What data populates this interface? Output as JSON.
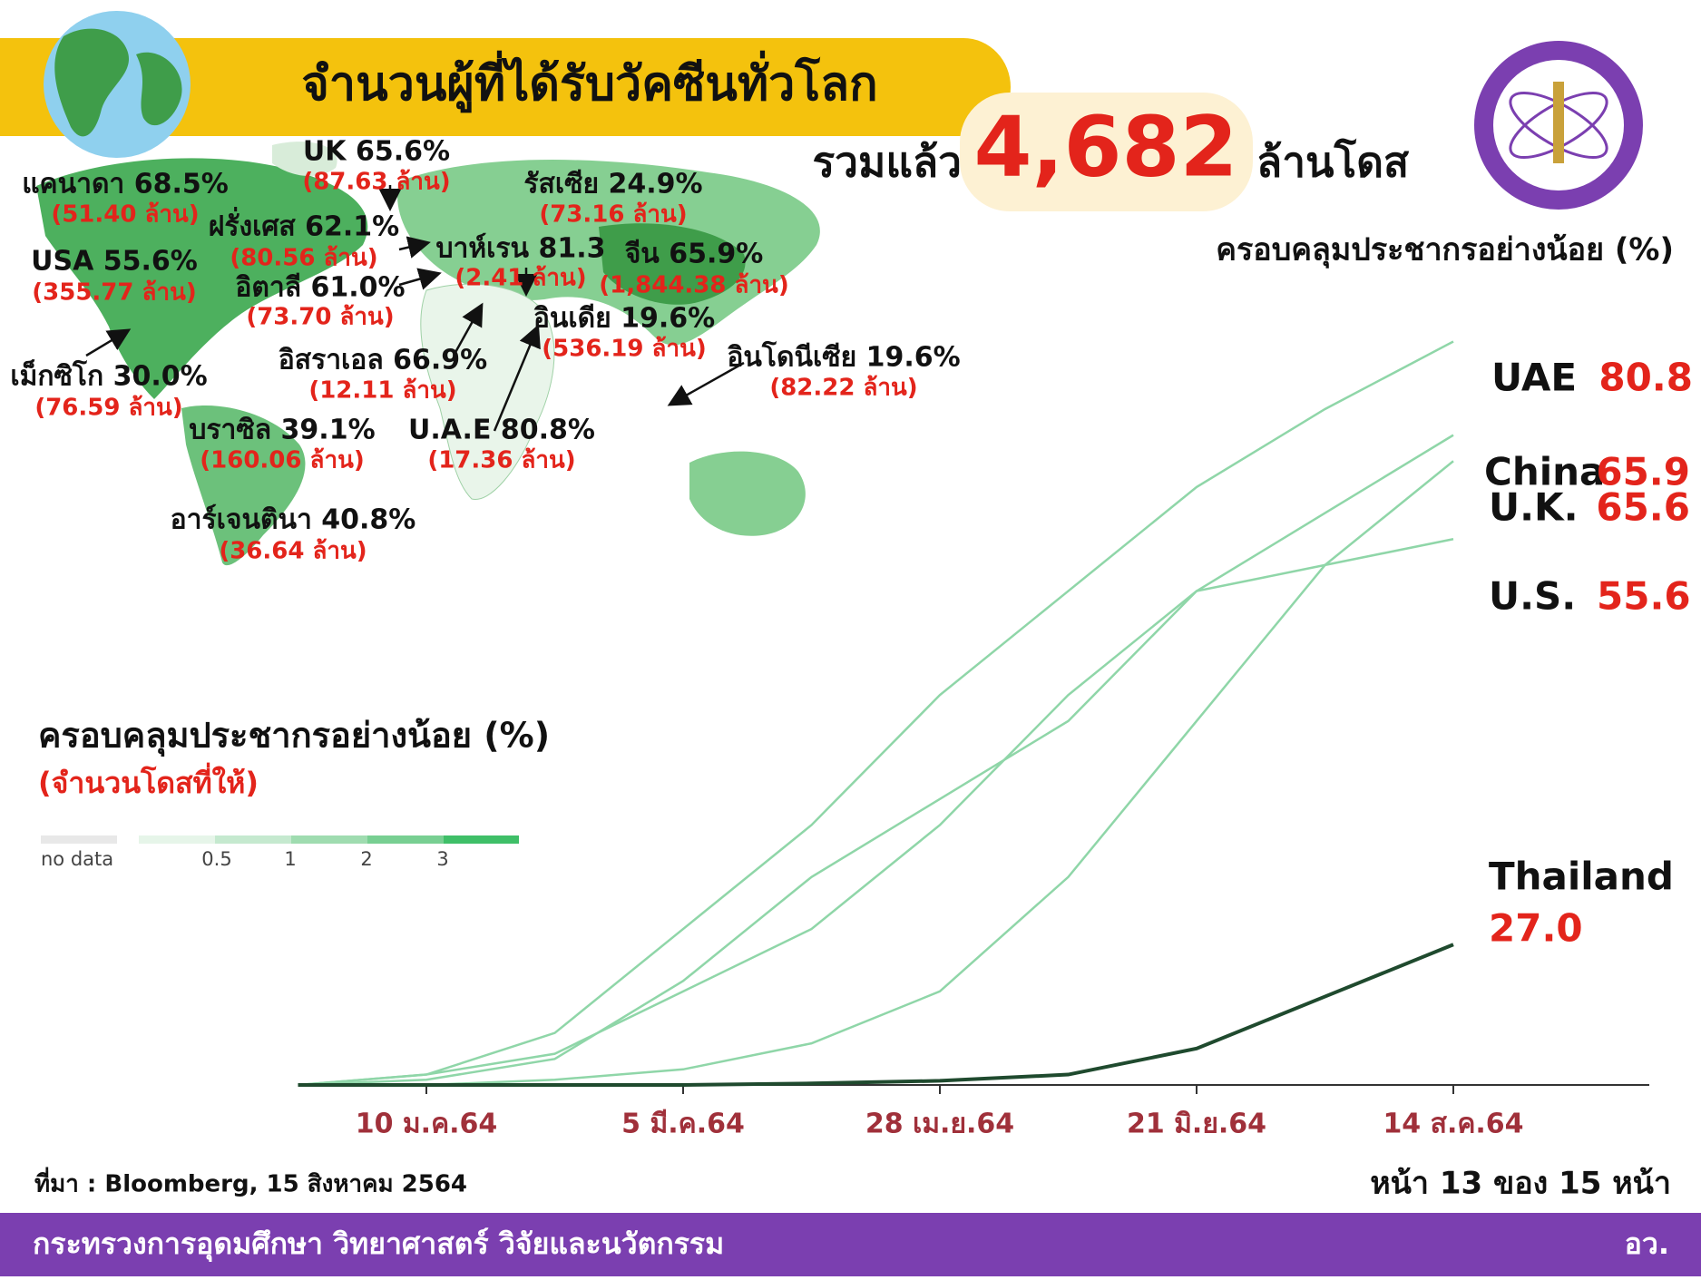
{
  "header": {
    "title": "จำนวนผู้ที่ได้รับวัคซีนทั่วโลก",
    "total_prefix": "รวมแล้ว",
    "total": "4,682",
    "total_unit": "ล้านโดส"
  },
  "coverage_heading": "ครอบคลุมประชากรอย่างน้อย (%)",
  "map": {
    "labels": [
      {
        "name": "UK 65.6%",
        "doses": "(87.63 ล้าน)"
      },
      {
        "name": "แคนาดา 68.5%",
        "doses": "(51.40 ล้าน)"
      },
      {
        "name": "รัสเซีย 24.9%",
        "doses": "(73.16 ล้าน)"
      },
      {
        "name": "ฝรั่งเศส 62.1%",
        "doses": "(80.56 ล้าน)"
      },
      {
        "name": "USA 55.6%",
        "doses": "(355.77 ล้าน)"
      },
      {
        "name": "บาห์เรน 81.3",
        "doses": "(2.41 ล้าน)"
      },
      {
        "name": "จีน 65.9%",
        "doses": "(1,844.38 ล้าน)"
      },
      {
        "name": "อิตาลี 61.0%",
        "doses": "(73.70 ล้าน)"
      },
      {
        "name": "อินเดีย 19.6%",
        "doses": "(536.19 ล้าน)"
      },
      {
        "name": "อิสราเอล 66.9%",
        "doses": "(12.11 ล้าน)"
      },
      {
        "name": "อินโดนีเซีย 19.6%",
        "doses": "(82.22 ล้าน)"
      },
      {
        "name": "เม็กซิโก 30.0%",
        "doses": "(76.59 ล้าน)"
      },
      {
        "name": "บราซิล 39.1%",
        "doses": "(160.06 ล้าน)"
      },
      {
        "name": "U.A.E 80.8%",
        "doses": "(17.36 ล้าน)"
      },
      {
        "name": "อาร์เจนตินา 40.8%",
        "doses": "(36.64 ล้าน)"
      }
    ],
    "legend": {
      "title": "ครอบคลุมประชากรอย่างน้อย (%)",
      "subtitle": "(จำนวนโดสที่ให้)",
      "no_data": "no data",
      "ticks": [
        "0.5",
        "1",
        "2",
        "3"
      ]
    }
  },
  "chart_data": {
    "type": "line",
    "categories": [
      null,
      "10 ม.ค.64",
      null,
      "5 มี.ค.64",
      null,
      "28 เม.ย.64",
      null,
      "21 มิ.ย.64",
      null,
      "14 ส.ค.64"
    ],
    "ylim": [
      0,
      145
    ],
    "series": [
      {
        "name": "UAE",
        "label": "80.8",
        "color": "#8fd6a8",
        "values": [
          0,
          2,
          10,
          30,
          50,
          75,
          95,
          115,
          130,
          143
        ]
      },
      {
        "name": "China",
        "label": "65.9",
        "color": "#8fd6a8",
        "values": [
          0,
          0,
          1,
          3,
          8,
          18,
          40,
          70,
          100,
          120
        ]
      },
      {
        "name": "U.K.",
        "label": "65.6",
        "color": "#8fd6a8",
        "values": [
          0,
          1,
          5,
          20,
          40,
          55,
          70,
          95,
          110,
          125
        ]
      },
      {
        "name": "U.S.",
        "label": "55.6",
        "color": "#8fd6a8",
        "values": [
          0,
          2,
          6,
          18,
          30,
          50,
          75,
          95,
          100,
          105
        ]
      },
      {
        "name": "Thailand",
        "label": "27.0",
        "color": "#1f4a2e",
        "values": [
          0,
          0,
          0,
          0,
          0.3,
          0.8,
          2,
          7,
          17,
          27
        ]
      }
    ]
  },
  "source": "ที่มา : Bloomberg, 15 สิงหาคม 2564",
  "page": "หน้า 13 ของ 15 หน้า",
  "footer": {
    "ministry": "กระทรวงการอุดมศึกษา วิทยาศาสตร์ วิจัยและนวัตกรรม",
    "short": "อว."
  }
}
